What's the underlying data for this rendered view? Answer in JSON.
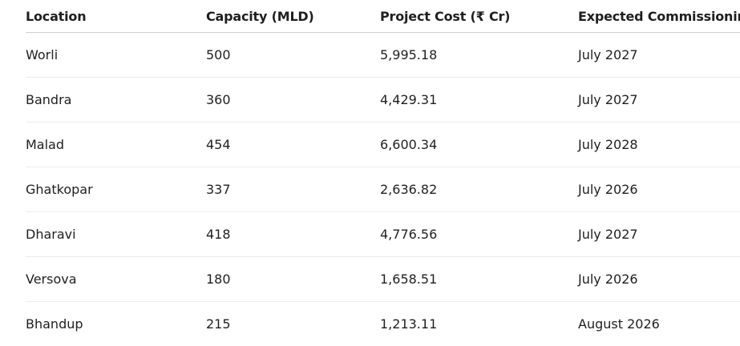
{
  "table": {
    "headers": [
      "Location",
      "Capacity (MLD)",
      "Project Cost (₹ Cr)",
      "Expected Commissioning"
    ],
    "rows": [
      [
        "Worli",
        "500",
        "5,995.18",
        "July 2027"
      ],
      [
        "Bandra",
        "360",
        "4,429.31",
        "July 2027"
      ],
      [
        "Malad",
        "454",
        "6,600.34",
        "July 2028"
      ],
      [
        "Ghatkopar",
        "337",
        "2,636.82",
        "July 2026"
      ],
      [
        "Dharavi",
        "418",
        "4,776.56",
        "July 2027"
      ],
      [
        "Versova",
        "180",
        "1,658.51",
        "July 2026"
      ],
      [
        "Bhandup",
        "215",
        "1,213.11",
        "August 2026"
      ]
    ]
  }
}
